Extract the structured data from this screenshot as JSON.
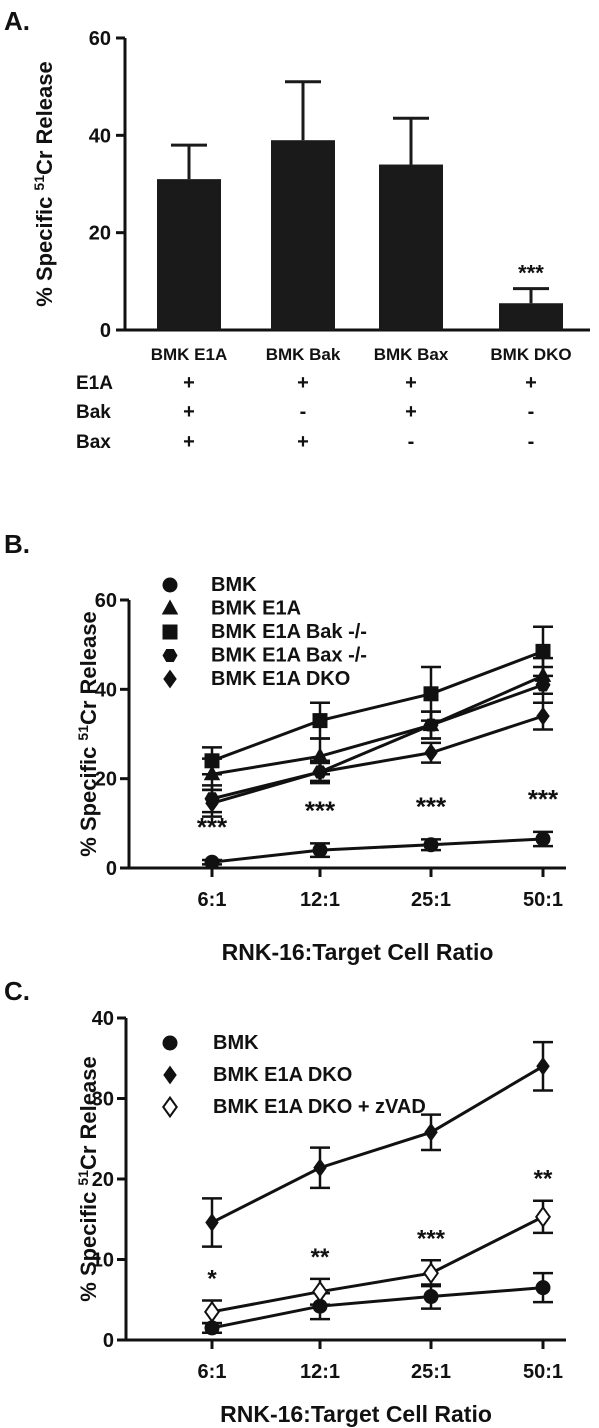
{
  "chart_data": [
    {
      "panel_label": "A.",
      "type": "bar",
      "ylabel_parts": [
        "% Specific ",
        "51",
        "Cr Release"
      ],
      "ylim": [
        0,
        60
      ],
      "yticks": [
        "0",
        "20",
        "40",
        "60"
      ],
      "categories": [
        "BMK E1A",
        "BMK Bak",
        "BMK Bax",
        "BMK DKO"
      ],
      "values": [
        31,
        39,
        34,
        5.5
      ],
      "errors": [
        7,
        12,
        9.5,
        3
      ],
      "annotations": [
        "",
        "",
        "",
        "***"
      ],
      "genotype_table": {
        "rows": [
          {
            "label": "E1A",
            "cells": [
              "+",
              "+",
              "+",
              "+"
            ]
          },
          {
            "label": "Bak",
            "cells": [
              "+",
              "-",
              "+",
              "-"
            ]
          },
          {
            "label": "Bax",
            "cells": [
              "+",
              "+",
              "-",
              "-"
            ]
          }
        ]
      }
    },
    {
      "panel_label": "B.",
      "type": "line",
      "ylabel_parts": [
        "% Specific ",
        "51",
        "Cr Release"
      ],
      "xlabel": "RNK-16:Target Cell Ratio",
      "categories": [
        "6:1",
        "12:1",
        "25:1",
        "50:1"
      ],
      "ylim": [
        0,
        60
      ],
      "yticks": [
        "0",
        "20",
        "40",
        "60"
      ],
      "legend_position": "top-left",
      "series": [
        {
          "name": "BMK",
          "marker": "circle",
          "values": [
            1.3,
            4,
            5.2,
            6.5
          ],
          "errors": [
            0.5,
            1.5,
            1.2,
            1.6
          ]
        },
        {
          "name": "BMK E1A",
          "marker": "triangle",
          "values": [
            21,
            25,
            32,
            43
          ],
          "errors": [
            3.5,
            4,
            3,
            4
          ]
        },
        {
          "name": "BMK E1A Bak -/-",
          "marker": "square",
          "values": [
            24,
            33,
            39,
            48.5
          ],
          "errors": [
            3,
            4,
            6,
            5.5
          ]
        },
        {
          "name": "BMK E1A Bax -/-",
          "marker": "hexagon",
          "values": [
            15.5,
            21.5,
            32,
            41
          ],
          "errors": [
            3,
            2,
            3,
            4
          ]
        },
        {
          "name": "BMK E1A DKO",
          "marker": "diamond",
          "values": [
            14.5,
            21.5,
            25.8,
            34
          ],
          "errors": [
            3,
            2.5,
            2.2,
            3
          ]
        }
      ],
      "annotations": [
        "***",
        "***",
        "***",
        "***"
      ]
    },
    {
      "panel_label": "C.",
      "type": "line",
      "ylabel_parts": [
        "% Specific ",
        "51",
        "Cr Release"
      ],
      "xlabel": "RNK-16:Target Cell Ratio",
      "categories": [
        "6:1",
        "12:1",
        "25:1",
        "50:1"
      ],
      "ylim": [
        0,
        40
      ],
      "yticks": [
        "0",
        "10",
        "20",
        "30",
        "40"
      ],
      "legend_position": "top-left",
      "series": [
        {
          "name": "BMK",
          "marker": "circle",
          "values": [
            1.5,
            4.2,
            5.4,
            6.5
          ],
          "errors": [
            0.6,
            1.6,
            1.5,
            1.8
          ]
        },
        {
          "name": "BMK E1A DKO",
          "marker": "diamond",
          "values": [
            14.6,
            21.4,
            25.8,
            34
          ],
          "errors": [
            3,
            2.5,
            2.2,
            3
          ]
        },
        {
          "name": "BMK E1A DKO + zVAD",
          "marker": "open-diamond",
          "values": [
            3.5,
            6,
            8.3,
            15.3
          ],
          "errors": [
            1.4,
            1.6,
            1.6,
            2
          ]
        }
      ],
      "annotations": [
        "*",
        "**",
        "***",
        "**"
      ]
    }
  ]
}
